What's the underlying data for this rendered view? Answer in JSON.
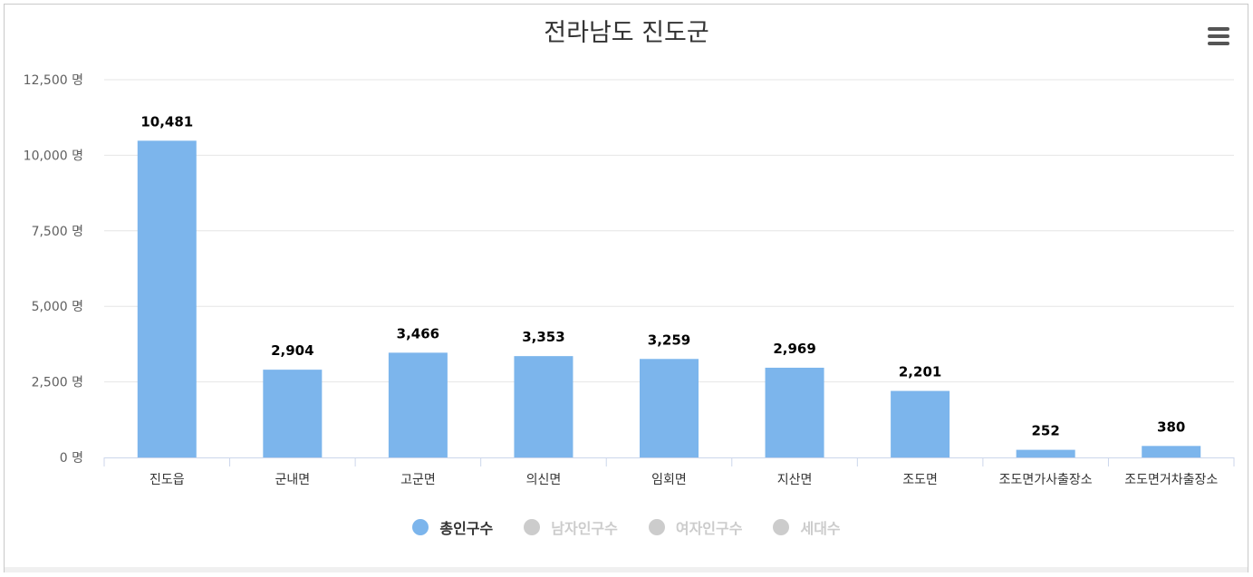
{
  "title": "전라남도 진도군",
  "legend": [
    {
      "label": "총인구수",
      "color": "#7cb5ec",
      "active": true
    },
    {
      "label": "남자인구수",
      "color": "#cccccc",
      "active": false
    },
    {
      "label": "여자인구수",
      "color": "#cccccc",
      "active": false
    },
    {
      "label": "세대수",
      "color": "#cccccc",
      "active": false
    }
  ],
  "menu_icon": "hamburger-menu-icon",
  "chart_data": {
    "type": "bar",
    "categories": [
      "진도읍",
      "군내면",
      "고군면",
      "의신면",
      "임회면",
      "지산면",
      "조도면",
      "조도면가사출장소",
      "조도면거차출장소"
    ],
    "series": [
      {
        "name": "총인구수",
        "values": [
          10481,
          2904,
          3466,
          3353,
          3259,
          2969,
          2201,
          252,
          380
        ],
        "color": "#7cb5ec"
      }
    ],
    "data_labels": [
      "10,481",
      "2,904",
      "3,466",
      "3,353",
      "3,259",
      "2,969",
      "2,201",
      "252",
      "380"
    ],
    "y_ticks": [
      "0 명",
      "2,500 명",
      "5,000 명",
      "7,500 명",
      "10,000 명",
      "12,500 명"
    ],
    "ylim": [
      0,
      12500
    ],
    "y_step": 2500,
    "grid": true,
    "legend_position": "bottom-center"
  }
}
